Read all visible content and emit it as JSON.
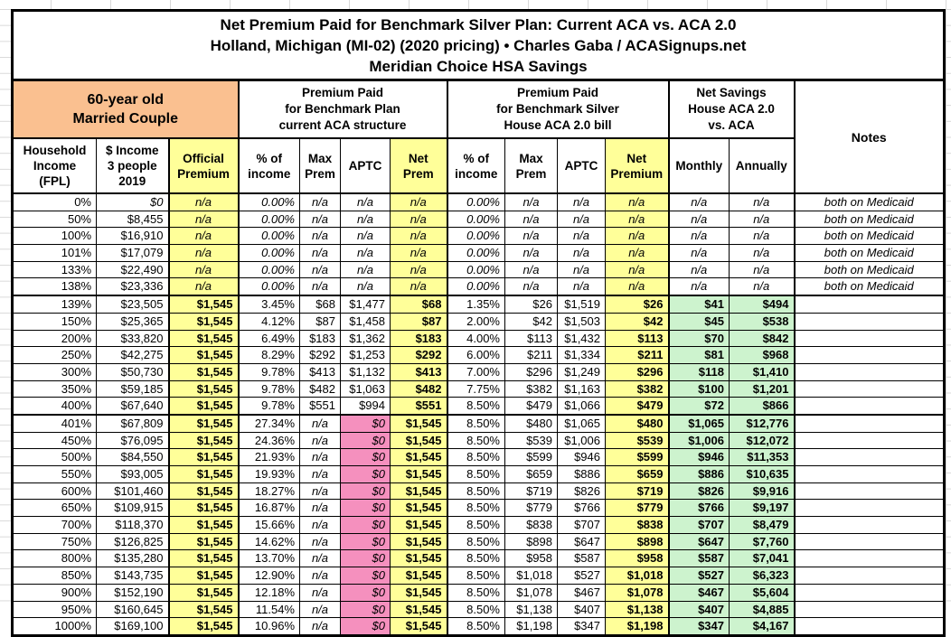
{
  "colors": {
    "orange": "#FAC090",
    "yellow": "#FFFF99",
    "pink": "#F590BE",
    "green": "#CDF3CE"
  },
  "sheet": {
    "title_lines": [
      "Net Premium Paid for Benchmark Silver Plan: Current ACA vs. ACA 2.0",
      "Holland, Michigan (MI-02) (2020 pricing) • Charles Gaba / ACASignups.net",
      "Meridian Choice HSA Savings"
    ]
  },
  "groups": {
    "couple": "60-year old\nMarried Couple",
    "aca": "Premium Paid\nfor Benchmark Plan\ncurrent ACA structure",
    "aca20": "Premium Paid\nfor Benchmark Silver\nHouse ACA 2.0 bill",
    "savings": "Net Savings\nHouse ACA 2.0\nvs. ACA",
    "notes": "Notes"
  },
  "columns": [
    {
      "key": "fpl",
      "label": "Household\nIncome\n(FPL)"
    },
    {
      "key": "income",
      "label": "$ Income\n3 people\n2019"
    },
    {
      "key": "official",
      "label": "Official\nPremium"
    },
    {
      "key": "pct1",
      "label": "% of\nincome"
    },
    {
      "key": "max1",
      "label": "Max\nPrem"
    },
    {
      "key": "aptc1",
      "label": "APTC"
    },
    {
      "key": "net1",
      "label": "Net\nPrem"
    },
    {
      "key": "pct2",
      "label": "% of\nincome"
    },
    {
      "key": "max2",
      "label": "Max\nPrem"
    },
    {
      "key": "aptc2",
      "label": "APTC"
    },
    {
      "key": "net2",
      "label": "Net\nPremium"
    },
    {
      "key": "monthly",
      "label": "Monthly"
    },
    {
      "key": "annually",
      "label": "Annually"
    },
    {
      "key": "notes",
      "label": ""
    }
  ],
  "rows": [
    [
      "0%",
      "$0",
      "n/a",
      "0.00%",
      "n/a",
      "n/a",
      "n/a",
      "0.00%",
      "n/a",
      "n/a",
      "n/a",
      "n/a",
      "n/a",
      "both on Medicaid"
    ],
    [
      "50%",
      "$8,455",
      "n/a",
      "0.00%",
      "n/a",
      "n/a",
      "n/a",
      "0.00%",
      "n/a",
      "n/a",
      "n/a",
      "n/a",
      "n/a",
      "both on Medicaid"
    ],
    [
      "100%",
      "$16,910",
      "n/a",
      "0.00%",
      "n/a",
      "n/a",
      "n/a",
      "0.00%",
      "n/a",
      "n/a",
      "n/a",
      "n/a",
      "n/a",
      "both on Medicaid"
    ],
    [
      "101%",
      "$17,079",
      "n/a",
      "0.00%",
      "n/a",
      "n/a",
      "n/a",
      "0.00%",
      "n/a",
      "n/a",
      "n/a",
      "n/a",
      "n/a",
      "both on Medicaid"
    ],
    [
      "133%",
      "$22,490",
      "n/a",
      "0.00%",
      "n/a",
      "n/a",
      "n/a",
      "0.00%",
      "n/a",
      "n/a",
      "n/a",
      "n/a",
      "n/a",
      "both on Medicaid"
    ],
    [
      "138%",
      "$23,336",
      "n/a",
      "0.00%",
      "n/a",
      "n/a",
      "n/a",
      "0.00%",
      "n/a",
      "n/a",
      "n/a",
      "n/a",
      "n/a",
      "both on Medicaid"
    ],
    [
      "139%",
      "$23,505",
      "$1,545",
      "3.45%",
      "$68",
      "$1,477",
      "$68",
      "1.35%",
      "$26",
      "$1,519",
      "$26",
      "$41",
      "$494",
      ""
    ],
    [
      "150%",
      "$25,365",
      "$1,545",
      "4.12%",
      "$87",
      "$1,458",
      "$87",
      "2.00%",
      "$42",
      "$1,503",
      "$42",
      "$45",
      "$538",
      ""
    ],
    [
      "200%",
      "$33,820",
      "$1,545",
      "6.49%",
      "$183",
      "$1,362",
      "$183",
      "4.00%",
      "$113",
      "$1,432",
      "$113",
      "$70",
      "$842",
      ""
    ],
    [
      "250%",
      "$42,275",
      "$1,545",
      "8.29%",
      "$292",
      "$1,253",
      "$292",
      "6.00%",
      "$211",
      "$1,334",
      "$211",
      "$81",
      "$968",
      ""
    ],
    [
      "300%",
      "$50,730",
      "$1,545",
      "9.78%",
      "$413",
      "$1,132",
      "$413",
      "7.00%",
      "$296",
      "$1,249",
      "$296",
      "$118",
      "$1,410",
      ""
    ],
    [
      "350%",
      "$59,185",
      "$1,545",
      "9.78%",
      "$482",
      "$1,063",
      "$482",
      "7.75%",
      "$382",
      "$1,163",
      "$382",
      "$100",
      "$1,201",
      ""
    ],
    [
      "400%",
      "$67,640",
      "$1,545",
      "9.78%",
      "$551",
      "$994",
      "$551",
      "8.50%",
      "$479",
      "$1,066",
      "$479",
      "$72",
      "$866",
      ""
    ],
    [
      "401%",
      "$67,809",
      "$1,545",
      "27.34%",
      "n/a",
      "$0",
      "$1,545",
      "8.50%",
      "$480",
      "$1,065",
      "$480",
      "$1,065",
      "$12,776",
      ""
    ],
    [
      "450%",
      "$76,095",
      "$1,545",
      "24.36%",
      "n/a",
      "$0",
      "$1,545",
      "8.50%",
      "$539",
      "$1,006",
      "$539",
      "$1,006",
      "$12,072",
      ""
    ],
    [
      "500%",
      "$84,550",
      "$1,545",
      "21.93%",
      "n/a",
      "$0",
      "$1,545",
      "8.50%",
      "$599",
      "$946",
      "$599",
      "$946",
      "$11,353",
      ""
    ],
    [
      "550%",
      "$93,005",
      "$1,545",
      "19.93%",
      "n/a",
      "$0",
      "$1,545",
      "8.50%",
      "$659",
      "$886",
      "$659",
      "$886",
      "$10,635",
      ""
    ],
    [
      "600%",
      "$101,460",
      "$1,545",
      "18.27%",
      "n/a",
      "$0",
      "$1,545",
      "8.50%",
      "$719",
      "$826",
      "$719",
      "$826",
      "$9,916",
      ""
    ],
    [
      "650%",
      "$109,915",
      "$1,545",
      "16.87%",
      "n/a",
      "$0",
      "$1,545",
      "8.50%",
      "$779",
      "$766",
      "$779",
      "$766",
      "$9,197",
      ""
    ],
    [
      "700%",
      "$118,370",
      "$1,545",
      "15.66%",
      "n/a",
      "$0",
      "$1,545",
      "8.50%",
      "$838",
      "$707",
      "$838",
      "$707",
      "$8,479",
      ""
    ],
    [
      "750%",
      "$126,825",
      "$1,545",
      "14.62%",
      "n/a",
      "$0",
      "$1,545",
      "8.50%",
      "$898",
      "$647",
      "$898",
      "$647",
      "$7,760",
      ""
    ],
    [
      "800%",
      "$135,280",
      "$1,545",
      "13.70%",
      "n/a",
      "$0",
      "$1,545",
      "8.50%",
      "$958",
      "$587",
      "$958",
      "$587",
      "$7,041",
      ""
    ],
    [
      "850%",
      "$143,735",
      "$1,545",
      "12.90%",
      "n/a",
      "$0",
      "$1,545",
      "8.50%",
      "$1,018",
      "$527",
      "$1,018",
      "$527",
      "$6,323",
      ""
    ],
    [
      "900%",
      "$152,190",
      "$1,545",
      "12.18%",
      "n/a",
      "$0",
      "$1,545",
      "8.50%",
      "$1,078",
      "$467",
      "$1,078",
      "$467",
      "$5,604",
      ""
    ],
    [
      "950%",
      "$160,645",
      "$1,545",
      "11.54%",
      "n/a",
      "$0",
      "$1,545",
      "8.50%",
      "$1,138",
      "$407",
      "$1,138",
      "$407",
      "$4,885",
      ""
    ],
    [
      "1000%",
      "$169,100",
      "$1,545",
      "10.96%",
      "n/a",
      "$0",
      "$1,545",
      "8.50%",
      "$1,198",
      "$347",
      "$1,198",
      "$347",
      "$4,167",
      ""
    ]
  ]
}
